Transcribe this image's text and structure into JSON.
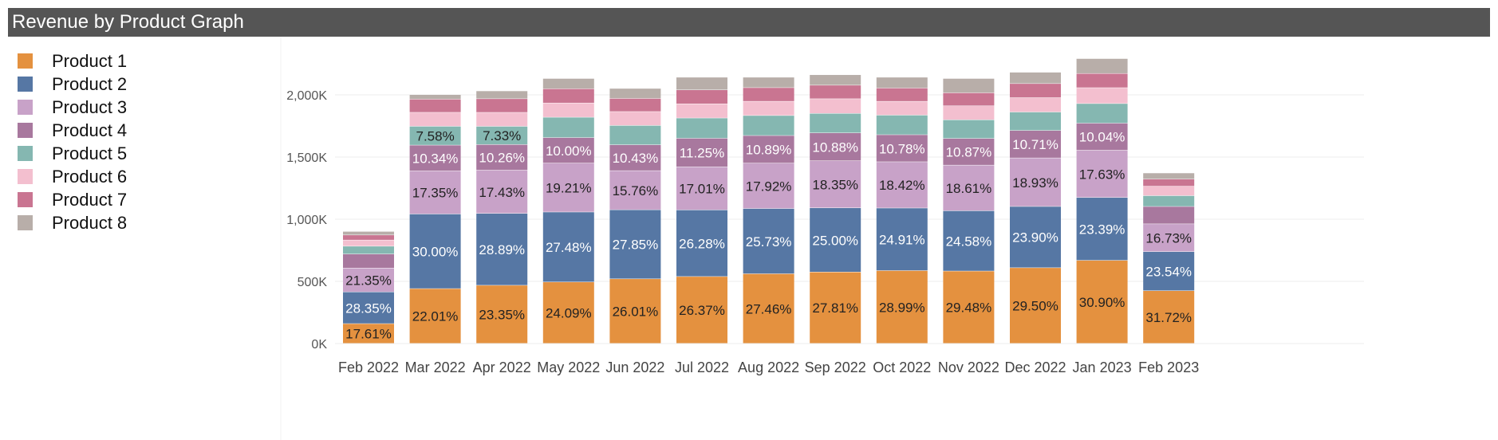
{
  "title": "Revenue by Product Graph",
  "legend": [
    {
      "label": "Product 1",
      "color": "#E4913F"
    },
    {
      "label": "Product 2",
      "color": "#5677A4"
    },
    {
      "label": "Product 3",
      "color": "#C8A2C8"
    },
    {
      "label": "Product 4",
      "color": "#A8789E"
    },
    {
      "label": "Product 5",
      "color": "#85B7B1"
    },
    {
      "label": "Product 6",
      "color": "#F3BFCF"
    },
    {
      "label": "Product 7",
      "color": "#C97591"
    },
    {
      "label": "Product 8",
      "color": "#B8AEA9"
    }
  ],
  "chart_data": {
    "type": "bar",
    "stacked": true,
    "title": "Revenue by Product Graph",
    "xlabel": "",
    "ylabel": "",
    "ylim": [
      0,
      2350
    ],
    "y_unit": "K",
    "yticks": [
      "0K",
      "500K",
      "1,000K",
      "1,500K",
      "2,000K"
    ],
    "ytick_values": [
      0,
      500,
      1000,
      1500,
      2000
    ],
    "categories": [
      "Feb 2022",
      "Mar 2022",
      "Apr 2022",
      "May 2022",
      "Jun 2022",
      "Jul 2022",
      "Aug 2022",
      "Sep 2022",
      "Oct 2022",
      "Nov 2022",
      "Dec 2022",
      "Jan 2023",
      "Feb 2023"
    ],
    "totals": [
      900,
      2000,
      2030,
      2130,
      2050,
      2140,
      2140,
      2160,
      2140,
      2130,
      2180,
      2290,
      1370
    ],
    "series": [
      {
        "name": "Product 1",
        "color": "#E4913F",
        "text_color": "#222222",
        "share_pct": [
          17.61,
          22.01,
          23.35,
          24.09,
          26.01,
          26.37,
          27.46,
          27.81,
          28.99,
          29.48,
          29.5,
          30.9,
          31.72
        ],
        "labels": [
          "17.61%",
          "22.01%",
          "23.35%",
          "24.09%",
          "26.01%",
          "26.37%",
          "27.46%",
          "27.81%",
          "28.99%",
          "29.48%",
          "29.50%",
          "30.90%",
          "31.72%"
        ]
      },
      {
        "name": "Product 2",
        "color": "#5677A4",
        "text_color": "#ffffff",
        "share_pct": [
          28.35,
          30.0,
          28.89,
          27.48,
          27.85,
          26.28,
          25.73,
          25.0,
          24.91,
          24.58,
          23.9,
          23.39,
          23.54
        ],
        "labels": [
          "28.35%",
          "30.00%",
          "28.89%",
          "27.48%",
          "27.85%",
          "26.28%",
          "25.73%",
          "25.00%",
          "24.91%",
          "24.58%",
          "23.90%",
          "23.39%",
          "23.54%"
        ]
      },
      {
        "name": "Product 3",
        "color": "#C8A2C8",
        "text_color": "#222222",
        "share_pct": [
          21.35,
          17.35,
          17.43,
          19.21,
          15.76,
          17.01,
          17.92,
          18.35,
          18.42,
          18.61,
          18.93,
          17.63,
          16.73
        ],
        "labels": [
          "21.35%",
          "17.35%",
          "17.43%",
          "19.21%",
          "15.76%",
          "17.01%",
          "17.92%",
          "18.35%",
          "18.42%",
          "18.61%",
          "18.93%",
          "17.63%",
          "16.73%"
        ]
      },
      {
        "name": "Product 4",
        "color": "#A8789E",
        "text_color": "#ffffff",
        "share_pct": [
          12.5,
          10.34,
          10.26,
          10.0,
          10.43,
          11.25,
          10.89,
          10.88,
          10.78,
          10.87,
          10.71,
          10.04,
          10.5
        ],
        "labels": [
          "",
          "10.34%",
          "10.26%",
          "10.00%",
          "10.43%",
          "11.25%",
          "10.89%",
          "10.88%",
          "10.78%",
          "10.87%",
          "10.71%",
          "10.04%",
          ""
        ]
      },
      {
        "name": "Product 5",
        "color": "#85B7B1",
        "text_color": "#222222",
        "share_pct": [
          7.0,
          7.58,
          7.33,
          8.0,
          7.8,
          8.0,
          7.9,
          7.6,
          7.8,
          7.6,
          7.2,
          7.3,
          6.5
        ],
        "labels": [
          "",
          "7.58%",
          "7.33%",
          "",
          "",
          "",
          "",
          "",
          "",
          "",
          "",
          "",
          ""
        ]
      },
      {
        "name": "Product 6",
        "color": "#F3BFCF",
        "text_color": "#222222",
        "share_pct": [
          5.5,
          5.6,
          5.6,
          5.6,
          5.6,
          5.6,
          5.6,
          5.7,
          5.5,
          5.7,
          5.6,
          5.9,
          5.7
        ],
        "labels": [
          "",
          "",
          "",
          "",
          "",
          "",
          "",
          "",
          "",
          "",
          "",
          "",
          ""
        ]
      },
      {
        "name": "Product 7",
        "color": "#C97591",
        "text_color": "#ffffff",
        "share_pct": [
          4.5,
          5.3,
          5.5,
          5.6,
          5.3,
          5.5,
          5.4,
          5.3,
          5.3,
          5.3,
          5.5,
          5.3,
          4.3
        ],
        "labels": [
          "",
          "",
          "",
          "",
          "",
          "",
          "",
          "",
          "",
          "",
          "",
          "",
          ""
        ]
      },
      {
        "name": "Product 8",
        "color": "#B8AEA9",
        "text_color": "#222222",
        "share_pct": [
          3.19,
          1.82,
          3.14,
          4.02,
          4.03,
          4.99,
          4.1,
          4.06,
          4.3,
          5.85,
          4.41,
          5.54,
          3.68
        ],
        "labels": [
          "",
          "",
          "",
          "",
          "",
          "",
          "",
          "",
          "",
          "",
          "",
          "",
          ""
        ]
      }
    ]
  }
}
